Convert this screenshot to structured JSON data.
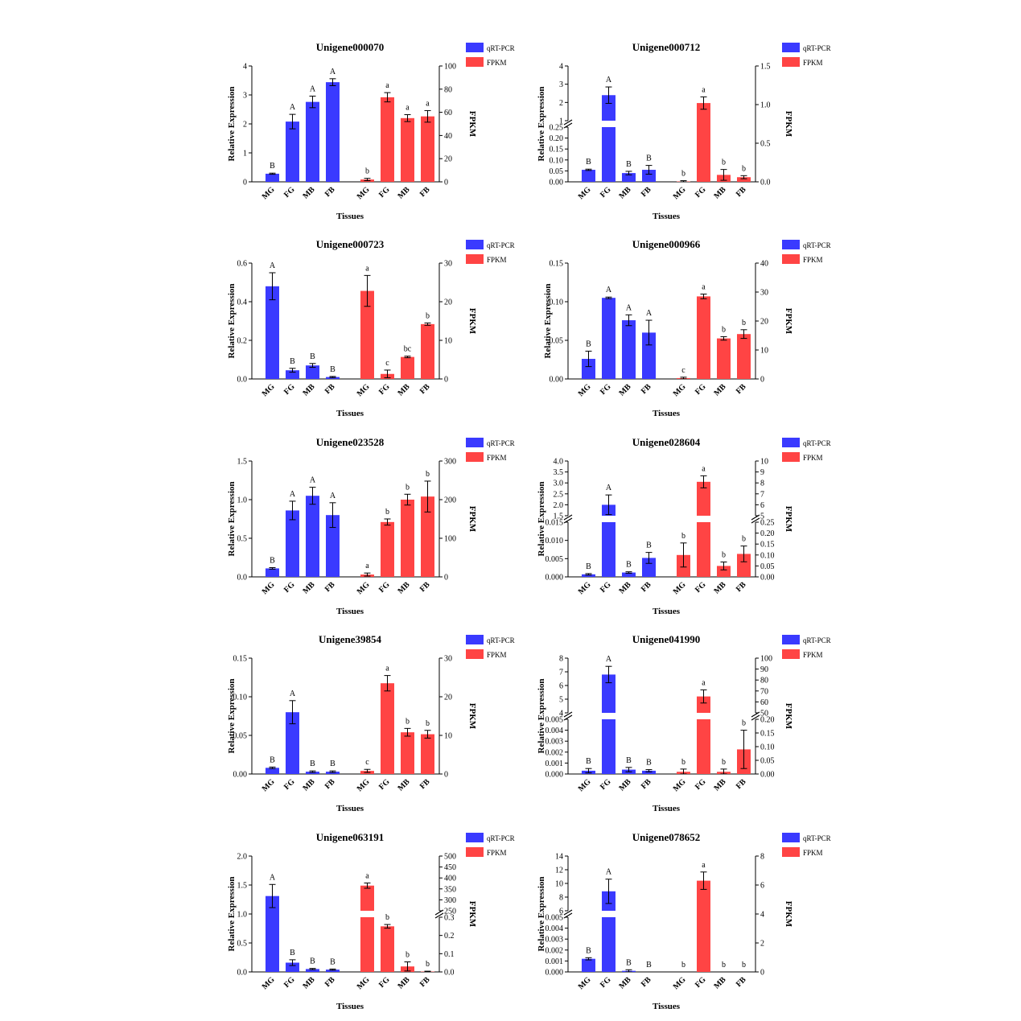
{
  "colors": {
    "qrt": "#3a3aff",
    "fpkm": "#ff4444",
    "axis": "#000000"
  },
  "chart_data": [
    {
      "type": "bar",
      "title": "Unigene000070",
      "categories": [
        "MG",
        "FG",
        "MB",
        "FB"
      ],
      "xlabel": "Tissues",
      "ylabel": "Relative Expression",
      "y2label": "FPKM",
      "legend": [
        "qRT-PCR",
        "FPKM"
      ],
      "legend_position": "top-right",
      "left": {
        "segments": [
          {
            "range": [
              0,
              4
            ],
            "ticks": [
              "0",
              "1",
              "2",
              "3",
              "4"
            ]
          }
        ]
      },
      "right": {
        "segments": [
          {
            "range": [
              0,
              100
            ],
            "ticks": [
              "0",
              "20",
              "40",
              "60",
              "80",
              "100"
            ]
          }
        ]
      },
      "series": [
        {
          "name": "qRT-PCR",
          "axis": "left",
          "values": [
            0.28,
            2.08,
            2.76,
            3.44
          ],
          "errors": [
            0.02,
            0.25,
            0.2,
            0.12
          ],
          "letters": [
            "B",
            "A",
            "A",
            "A"
          ]
        },
        {
          "name": "FPKM",
          "axis": "right",
          "values": [
            2,
            73,
            55,
            56.5
          ],
          "errors": [
            1,
            4,
            3,
            5
          ],
          "letters": [
            "b",
            "a",
            "a",
            "a"
          ]
        }
      ]
    },
    {
      "type": "bar",
      "title": "Unigene000712",
      "categories": [
        "MG",
        "FG",
        "MB",
        "FB"
      ],
      "xlabel": "Tissues",
      "ylabel": "Relative Expression",
      "y2label": "FPKM",
      "legend": [
        "qRT-PCR",
        "FPKM"
      ],
      "legend_position": "top-right",
      "left": {
        "segments": [
          {
            "range": [
              0,
              0.25
            ],
            "ticks": [
              "0.00",
              "0.05",
              "0.10",
              "0.15",
              "0.20",
              "0.25"
            ]
          },
          {
            "range": [
              1,
              4
            ],
            "ticks": [
              "1",
              "2",
              "3",
              "4"
            ]
          }
        ]
      },
      "right": {
        "segments": [
          {
            "range": [
              0,
              1.5
            ],
            "ticks": [
              "0.0",
              "0.5",
              "1.0",
              "1.5"
            ]
          }
        ]
      },
      "series": [
        {
          "name": "qRT-PCR",
          "axis": "left",
          "values": [
            0.055,
            2.4,
            0.04,
            0.055
          ],
          "errors": [
            0.003,
            0.45,
            0.008,
            0.02
          ],
          "letters": [
            "B",
            "A",
            "B",
            "B"
          ]
        },
        {
          "name": "FPKM",
          "axis": "right",
          "values": [
            0.005,
            1.02,
            0.09,
            0.06
          ],
          "errors": [
            0.01,
            0.08,
            0.07,
            0.02
          ],
          "letters": [
            "b",
            "a",
            "b",
            "b"
          ]
        }
      ]
    },
    {
      "type": "bar",
      "title": "Unigene000723",
      "categories": [
        "MG",
        "FG",
        "MB",
        "FB"
      ],
      "xlabel": "Tissues",
      "ylabel": "Relative Expression",
      "y2label": "FPKM",
      "legend": [
        "qRT-PCR",
        "FPKM"
      ],
      "legend_position": "top-right",
      "left": {
        "segments": [
          {
            "range": [
              0,
              0.6
            ],
            "ticks": [
              "0.0",
              "0.2",
              "0.4",
              "0.6"
            ]
          }
        ]
      },
      "right": {
        "segments": [
          {
            "range": [
              0,
              30
            ],
            "ticks": [
              "0",
              "10",
              "20",
              "30"
            ]
          }
        ]
      },
      "series": [
        {
          "name": "qRT-PCR",
          "axis": "left",
          "values": [
            0.48,
            0.045,
            0.07,
            0.01
          ],
          "errors": [
            0.07,
            0.01,
            0.01,
            0.003
          ],
          "letters": [
            "A",
            "B",
            "B",
            "B"
          ]
        },
        {
          "name": "FPKM",
          "axis": "right",
          "values": [
            22.8,
            1.3,
            5.7,
            14.2
          ],
          "errors": [
            4,
            1,
            0.2,
            0.3
          ],
          "letters": [
            "a",
            "c",
            "bc",
            "b"
          ]
        }
      ]
    },
    {
      "type": "bar",
      "title": "Unigene000966",
      "categories": [
        "MG",
        "FG",
        "MB",
        "FB"
      ],
      "xlabel": "Tissues",
      "ylabel": "Relative Expression",
      "y2label": "FPKM",
      "legend": [
        "qRT-PCR",
        "FPKM"
      ],
      "legend_position": "top-right",
      "left": {
        "segments": [
          {
            "range": [
              0,
              0.15
            ],
            "ticks": [
              "0.00",
              "0.05",
              "0.10",
              "0.15"
            ]
          }
        ]
      },
      "right": {
        "segments": [
          {
            "range": [
              0,
              40
            ],
            "ticks": [
              "0",
              "10",
              "20",
              "30",
              "40"
            ]
          }
        ]
      },
      "series": [
        {
          "name": "qRT-PCR",
          "axis": "left",
          "values": [
            0.026,
            0.105,
            0.076,
            0.06
          ],
          "errors": [
            0.01,
            0.001,
            0.007,
            0.016
          ],
          "letters": [
            "B",
            "A",
            "A",
            "A"
          ]
        },
        {
          "name": "FPKM",
          "axis": "right",
          "values": [
            0.3,
            28.5,
            14,
            15.5
          ],
          "errors": [
            0.3,
            0.8,
            0.6,
            1.5
          ],
          "letters": [
            "c",
            "a",
            "b",
            "b"
          ]
        }
      ]
    },
    {
      "type": "bar",
      "title": "Unigene023528",
      "categories": [
        "MG",
        "FG",
        "MB",
        "FB"
      ],
      "xlabel": "Tissues",
      "ylabel": "Relative Expression",
      "y2label": "FPKM",
      "legend": [
        "qRT-PCR",
        "FPKM"
      ],
      "legend_position": "top-right",
      "left": {
        "segments": [
          {
            "range": [
              0,
              1.5
            ],
            "ticks": [
              "0.0",
              "0.5",
              "1.0",
              "1.5"
            ]
          }
        ]
      },
      "right": {
        "segments": [
          {
            "range": [
              0,
              300
            ],
            "ticks": [
              "0",
              "100",
              "200",
              "300"
            ]
          }
        ]
      },
      "series": [
        {
          "name": "qRT-PCR",
          "axis": "left",
          "values": [
            0.11,
            0.86,
            1.05,
            0.8
          ],
          "errors": [
            0.01,
            0.12,
            0.11,
            0.16
          ],
          "letters": [
            "B",
            "A",
            "A",
            "A"
          ]
        },
        {
          "name": "FPKM",
          "axis": "right",
          "values": [
            6,
            142,
            200,
            208
          ],
          "errors": [
            4,
            8,
            14,
            40
          ],
          "letters": [
            "a",
            "b",
            "b",
            "b"
          ]
        }
      ]
    },
    {
      "type": "bar",
      "title": "Unigene028604",
      "categories": [
        "MG",
        "FG",
        "MB",
        "FB"
      ],
      "xlabel": "Tissues",
      "ylabel": "Relative Expression",
      "y2label": "FPKM",
      "legend": [
        "qRT-PCR",
        "FPKM"
      ],
      "legend_position": "top-right",
      "left": {
        "segments": [
          {
            "range": [
              0,
              0.015
            ],
            "ticks": [
              "0.000",
              "0.005",
              "0.010",
              "0.015"
            ]
          },
          {
            "range": [
              1.5,
              4
            ],
            "ticks": [
              "1.5",
              "2.0",
              "2.5",
              "3.0",
              "3.5",
              "4.0"
            ]
          }
        ]
      },
      "right": {
        "segments": [
          {
            "range": [
              0,
              0.25
            ],
            "ticks": [
              "0.00",
              "0.05",
              "0.10",
              "0.15",
              "0.20",
              "0.25"
            ]
          },
          {
            "range": [
              5,
              10
            ],
            "ticks": [
              "5",
              "6",
              "7",
              "8",
              "9",
              "10"
            ]
          }
        ]
      },
      "series": [
        {
          "name": "qRT-PCR",
          "axis": "left",
          "values": [
            0.0007,
            2.0,
            0.0012,
            0.0052
          ],
          "errors": [
            0.0002,
            0.45,
            0.0002,
            0.0015
          ],
          "letters": [
            "B",
            "A",
            "B",
            "B"
          ]
        },
        {
          "name": "FPKM",
          "axis": "right",
          "values": [
            0.1,
            8.1,
            0.05,
            0.105
          ],
          "errors": [
            0.055,
            0.55,
            0.018,
            0.036
          ],
          "letters": [
            "b",
            "a",
            "b",
            "b"
          ]
        }
      ]
    },
    {
      "type": "bar",
      "title": "Unigene39854",
      "categories": [
        "MG",
        "FG",
        "MB",
        "FB"
      ],
      "xlabel": "Tissues",
      "ylabel": "Relative Expression",
      "y2label": "FPKM",
      "legend": [
        "qRT-PCR",
        "FPKM"
      ],
      "legend_position": "top-right",
      "left": {
        "segments": [
          {
            "range": [
              0,
              0.15
            ],
            "ticks": [
              "0.00",
              "0.05",
              "0.10",
              "0.15"
            ]
          }
        ]
      },
      "right": {
        "segments": [
          {
            "range": [
              0,
              30
            ],
            "ticks": [
              "0",
              "10",
              "20",
              "30"
            ]
          }
        ]
      },
      "series": [
        {
          "name": "qRT-PCR",
          "axis": "left",
          "values": [
            0.008,
            0.08,
            0.003,
            0.003
          ],
          "errors": [
            0.001,
            0.015,
            0.001,
            0.001
          ],
          "letters": [
            "B",
            "A",
            "B",
            "B"
          ]
        },
        {
          "name": "FPKM",
          "axis": "right",
          "values": [
            0.8,
            23.5,
            10.8,
            10.3
          ],
          "errors": [
            0.4,
            2,
            1,
            1
          ],
          "letters": [
            "c",
            "a",
            "b",
            "b"
          ]
        }
      ]
    },
    {
      "type": "bar",
      "title": "Unigene041990",
      "categories": [
        "MG",
        "FG",
        "MB",
        "FB"
      ],
      "xlabel": "Tissues",
      "ylabel": "Relative Expression",
      "y2label": "FPKM",
      "legend": [
        "qRT-PCR",
        "FPKM"
      ],
      "legend_position": "top-right",
      "left": {
        "segments": [
          {
            "range": [
              0,
              0.005
            ],
            "ticks": [
              "0.000",
              "0.001",
              "0.002",
              "0.003",
              "0.004",
              "0.005"
            ]
          },
          {
            "range": [
              4,
              8
            ],
            "ticks": [
              "4",
              "5",
              "6",
              "7",
              "8"
            ]
          }
        ]
      },
      "right": {
        "segments": [
          {
            "range": [
              0,
              0.2
            ],
            "ticks": [
              "0.00",
              "0.05",
              "0.10",
              "0.15",
              "0.20"
            ]
          },
          {
            "range": [
              50,
              100
            ],
            "ticks": [
              "50",
              "60",
              "70",
              "80",
              "90",
              "100"
            ]
          }
        ]
      },
      "series": [
        {
          "name": "qRT-PCR",
          "axis": "left",
          "values": [
            0.0003,
            6.8,
            0.0004,
            0.0003
          ],
          "errors": [
            0.0002,
            0.6,
            0.0002,
            0.0001
          ],
          "letters": [
            "B",
            "A",
            "B",
            "B"
          ]
        },
        {
          "name": "FPKM",
          "axis": "right",
          "values": [
            0.008,
            65,
            0.008,
            0.09
          ],
          "errors": [
            0.01,
            6,
            0.01,
            0.07
          ],
          "letters": [
            "b",
            "a",
            "b",
            "b"
          ]
        }
      ]
    },
    {
      "type": "bar",
      "title": "Unigene063191",
      "categories": [
        "MG",
        "FG",
        "MB",
        "FB"
      ],
      "xlabel": "Tissues",
      "ylabel": "Relative Expression",
      "y2label": "FPKM",
      "legend": [
        "qRT-PCR",
        "FPKM"
      ],
      "legend_position": "top-right",
      "left": {
        "segments": [
          {
            "range": [
              0,
              2.0
            ],
            "ticks": [
              "0.0",
              "0.5",
              "1.0",
              "1.5",
              "2.0"
            ]
          }
        ]
      },
      "right": {
        "segments": [
          {
            "range": [
              0,
              0.3
            ],
            "ticks": [
              "0.0",
              "0.1",
              "0.2",
              "0.3"
            ]
          },
          {
            "range": [
              250,
              500
            ],
            "ticks": [
              "250",
              "300",
              "350",
              "400",
              "450",
              "500"
            ]
          }
        ]
      },
      "series": [
        {
          "name": "qRT-PCR",
          "axis": "left",
          "values": [
            1.31,
            0.16,
            0.05,
            0.04
          ],
          "errors": [
            0.2,
            0.05,
            0.01,
            0.01
          ],
          "letters": [
            "A",
            "B",
            "B",
            "B"
          ]
        },
        {
          "name": "FPKM",
          "axis": "right",
          "values": [
            365,
            0.25,
            0.03,
            0.002
          ],
          "errors": [
            12,
            0.01,
            0.025,
            0.002
          ],
          "letters": [
            "a",
            "b",
            "b",
            "b"
          ]
        }
      ]
    },
    {
      "type": "bar",
      "title": "Unigene078652",
      "categories": [
        "MG",
        "FG",
        "MB",
        "FB"
      ],
      "xlabel": "Tissues",
      "ylabel": "Relative Expression",
      "y2label": "FPKM",
      "legend": [
        "qRT-PCR",
        "FPKM"
      ],
      "legend_position": "top-right",
      "left": {
        "segments": [
          {
            "range": [
              0,
              0.005
            ],
            "ticks": [
              "0.000",
              "0.001",
              "0.002",
              "0.003",
              "0.004",
              "0.005"
            ]
          },
          {
            "range": [
              6,
              15
            ],
            "ticks": [
              "6",
              "8",
              "10",
              "12",
              "14"
            ]
          }
        ]
      },
      "right": {
        "segments": [
          {
            "range": [
              0,
              8
            ],
            "ticks": [
              "0",
              "2",
              "4",
              "6",
              "8"
            ]
          }
        ]
      },
      "series": [
        {
          "name": "qRT-PCR",
          "axis": "left",
          "values": [
            0.0012,
            9.2,
            0.0001,
            0
          ],
          "errors": [
            0.0001,
            2,
            0.0001,
            0
          ],
          "letters": [
            "B",
            "A",
            "B",
            "B"
          ]
        },
        {
          "name": "FPKM",
          "axis": "right",
          "values": [
            0,
            6.3,
            0,
            0
          ],
          "errors": [
            0,
            0.6,
            0,
            0
          ],
          "letters": [
            "b",
            "a",
            "b",
            "b"
          ]
        }
      ]
    }
  ]
}
